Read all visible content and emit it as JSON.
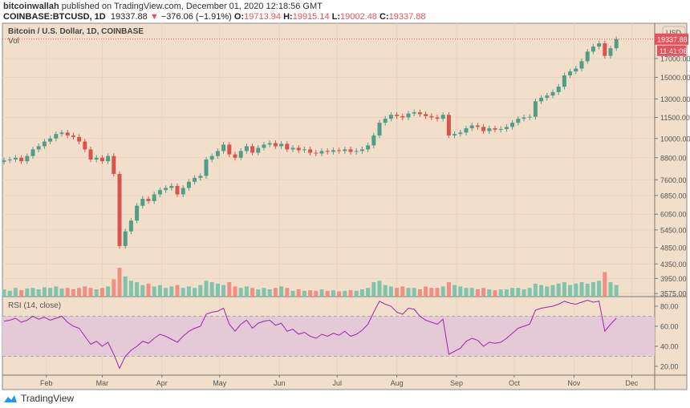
{
  "header": {
    "author": "bitcoinwallah",
    "published_text": "published on TradingView.com, December 01, 2020 12:18:56 GMT",
    "symbol": "COINBASE:BTCUSD, 1D",
    "last": "19337.88",
    "change": "−376.06 (−1.91%)",
    "change_icon": "triangle-down-icon",
    "o_label": "O:",
    "o": "19713.94",
    "h_label": "H:",
    "h": "19915.14",
    "l_label": "L:",
    "l": "19002.48",
    "c_label": "C:",
    "c": "19337.88"
  },
  "pane": {
    "title": "Bitcoin / U.S. Dollar, 1D, COINBASE",
    "vol_label": "Vol",
    "rsi_label": "RSI (14, close)",
    "currency": "USD",
    "last_price_tag": "19337.88",
    "countdown_tag": "11:41:06"
  },
  "footer": {
    "brand": "TradingView"
  },
  "colors": {
    "background": "#f2dfcb",
    "up": "#4f9e86",
    "down": "#d9534f",
    "vol_up": "#7fc4ad",
    "vol_down": "#f08f83",
    "rsi": "#9c27b0",
    "rsi_band": "#e4c9d6",
    "price_line": "#e8505b"
  },
  "chart_data": {
    "type": "candlestick",
    "scale": "log",
    "grid": true,
    "price_ticks": [
      "17000.00",
      "15000.00",
      "13000.00",
      "11500.00",
      "10000.00",
      "8800.00",
      "7600.00",
      "6850.00",
      "6050.00",
      "5450.00",
      "4850.00",
      "4350.00",
      "3950.00",
      "3575.00"
    ],
    "price_tick_values": [
      17000,
      15000,
      13000,
      11500,
      10000,
      8800,
      7600,
      6850,
      6050,
      5450,
      4850,
      4350,
      3950,
      3575
    ],
    "x_ticks": [
      {
        "label": "Feb",
        "date": "2020-02-01"
      },
      {
        "label": "Mar",
        "date": "2020-03-01"
      },
      {
        "label": "Apr",
        "date": "2020-04-01"
      },
      {
        "label": "May",
        "date": "2020-05-01"
      },
      {
        "label": "Jun",
        "date": "2020-06-01"
      },
      {
        "label": "Jul",
        "date": "2020-07-01"
      },
      {
        "label": "Aug",
        "date": "2020-08-01"
      },
      {
        "label": "Sep",
        "date": "2020-09-01"
      },
      {
        "label": "Oct",
        "date": "2020-10-01"
      },
      {
        "label": "Nov",
        "date": "2020-11-01"
      },
      {
        "label": "Dec",
        "date": "2020-12-01"
      }
    ],
    "closes": [
      8650,
      8700,
      8800,
      8600,
      8900,
      9300,
      9500,
      9800,
      10000,
      10300,
      10400,
      10200,
      10100,
      9800,
      9300,
      8700,
      8800,
      8600,
      8900,
      7900,
      4900,
      5400,
      5800,
      6400,
      6700,
      6600,
      6900,
      7100,
      7200,
      7300,
      6900,
      7200,
      7500,
      7700,
      7800,
      8700,
      8900,
      9200,
      9600,
      9000,
      8800,
      9200,
      9500,
      9100,
      9400,
      9600,
      9700,
      9500,
      9650,
      9300,
      9400,
      9250,
      9300,
      9100,
      9050,
      9200,
      9150,
      9250,
      9200,
      9300,
      9150,
      9200,
      9300,
      9550,
      10200,
      11100,
      11400,
      11700,
      11600,
      11500,
      11800,
      11900,
      11750,
      11600,
      11500,
      11400,
      11700,
      10200,
      10300,
      10400,
      10700,
      10900,
      10800,
      10500,
      10700,
      10600,
      10650,
      10800,
      11100,
      11400,
      11500,
      11550,
      12800,
      13100,
      13300,
      13600,
      14100,
      15200,
      15600,
      15900,
      16700,
      17800,
      18400,
      18800,
      17300,
      18200,
      19337.88
    ],
    "volume_relative": [
      0.25,
      0.2,
      0.3,
      0.22,
      0.28,
      0.3,
      0.25,
      0.32,
      0.3,
      0.35,
      0.28,
      0.3,
      0.25,
      0.3,
      0.35,
      0.3,
      0.25,
      0.3,
      0.35,
      0.6,
      1.0,
      0.7,
      0.55,
      0.5,
      0.4,
      0.45,
      0.35,
      0.4,
      0.3,
      0.35,
      0.4,
      0.3,
      0.35,
      0.3,
      0.4,
      0.55,
      0.5,
      0.45,
      0.4,
      0.5,
      0.35,
      0.3,
      0.35,
      0.3,
      0.25,
      0.3,
      0.25,
      0.3,
      0.35,
      0.3,
      0.2,
      0.25,
      0.2,
      0.22,
      0.2,
      0.25,
      0.2,
      0.22,
      0.18,
      0.2,
      0.22,
      0.2,
      0.25,
      0.3,
      0.5,
      0.55,
      0.4,
      0.35,
      0.3,
      0.35,
      0.3,
      0.3,
      0.25,
      0.35,
      0.3,
      0.3,
      0.35,
      0.5,
      0.4,
      0.35,
      0.3,
      0.3,
      0.25,
      0.3,
      0.25,
      0.22,
      0.25,
      0.25,
      0.3,
      0.3,
      0.25,
      0.3,
      0.45,
      0.4,
      0.35,
      0.4,
      0.45,
      0.5,
      0.4,
      0.45,
      0.5,
      0.45,
      0.5,
      0.55,
      0.85,
      0.5,
      0.4
    ],
    "rsi": {
      "ticks": [
        "80.00",
        "60.00",
        "40.00",
        "20.00"
      ],
      "tick_values": [
        80,
        60,
        40,
        20
      ],
      "band": [
        30,
        70
      ],
      "values": [
        65,
        66,
        68,
        64,
        66,
        70,
        67,
        69,
        66,
        68,
        70,
        64,
        60,
        58,
        50,
        42,
        45,
        40,
        44,
        32,
        18,
        30,
        36,
        40,
        45,
        43,
        48,
        52,
        50,
        47,
        44,
        50,
        55,
        58,
        60,
        72,
        74,
        75,
        78,
        62,
        55,
        62,
        66,
        58,
        63,
        65,
        66,
        61,
        63,
        55,
        57,
        52,
        54,
        50,
        48,
        52,
        50,
        53,
        51,
        55,
        50,
        52,
        56,
        62,
        74,
        85,
        82,
        80,
        74,
        72,
        78,
        77,
        70,
        66,
        64,
        62,
        67,
        32,
        35,
        38,
        45,
        48,
        46,
        40,
        44,
        43,
        44,
        48,
        53,
        58,
        60,
        62,
        76,
        78,
        79,
        80,
        82,
        85,
        83,
        82,
        84,
        86,
        84,
        85,
        55,
        62,
        68
      ]
    }
  }
}
